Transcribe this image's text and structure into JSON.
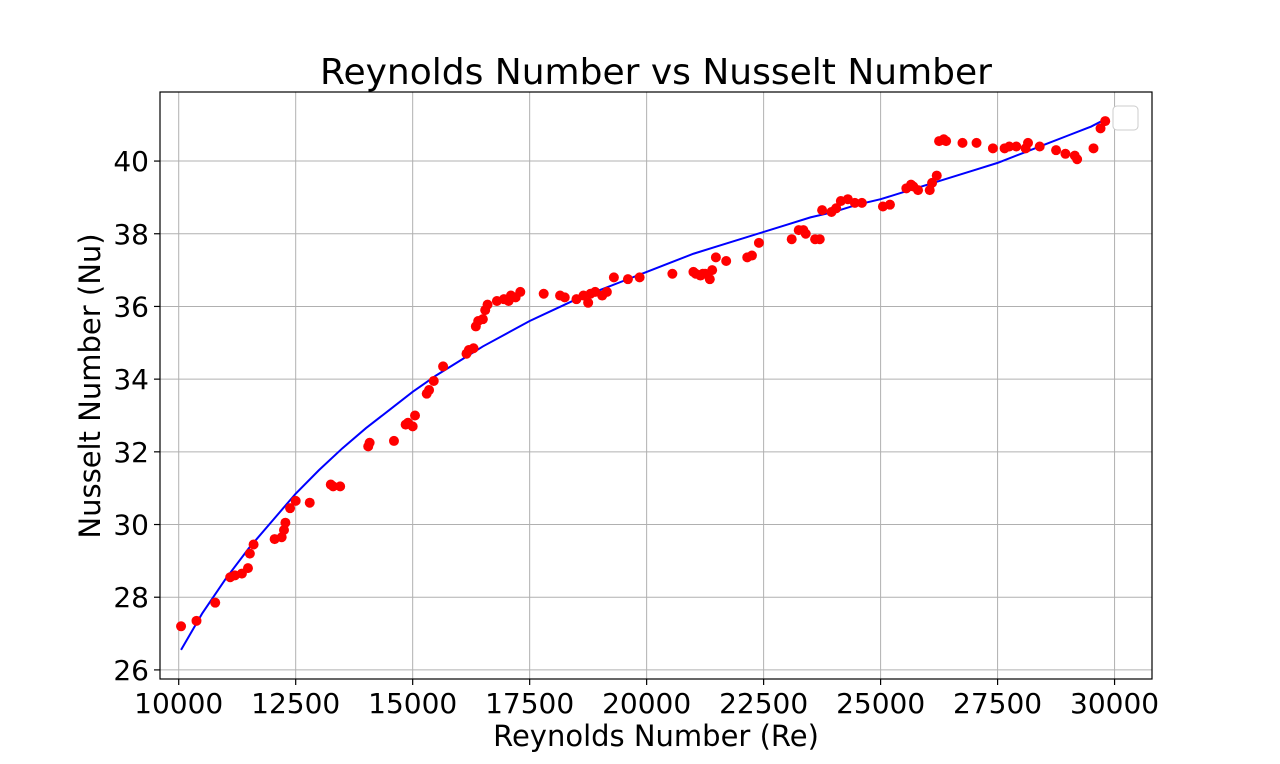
{
  "chart_data": {
    "type": "scatter",
    "title": "Reynolds Number vs Nusselt Number",
    "xlabel": "Reynolds Number (Re)",
    "ylabel": "Nusselt Number (Nu)",
    "xlim": [
      9600,
      30800
    ],
    "ylim": [
      25.75,
      41.9
    ],
    "xticks": [
      10000,
      12500,
      15000,
      17500,
      20000,
      22500,
      25000,
      27500,
      30000
    ],
    "yticks": [
      26,
      28,
      30,
      32,
      34,
      36,
      38,
      40
    ],
    "grid": true,
    "legend": "top-right",
    "colors": {
      "points": "#ff0000",
      "fit": "#0000ff"
    },
    "series": [
      {
        "kind": "scatter",
        "color": "#ff0000",
        "x": [
          10050,
          10380,
          10780,
          11100,
          11200,
          11350,
          11480,
          11520,
          11600,
          12050,
          12200,
          12250,
          12280,
          12380,
          12500,
          12800,
          13250,
          13300,
          13450,
          14050,
          14080,
          14600,
          14850,
          14900,
          15000,
          15050,
          15300,
          15350,
          15450,
          15650,
          16150,
          16200,
          16300,
          16350,
          16400,
          16500,
          16550,
          16600,
          16800,
          16950,
          17050,
          17100,
          17200,
          17300,
          17800,
          18150,
          18250,
          18500,
          18650,
          18750,
          18800,
          18900,
          19050,
          19150,
          19300,
          19600,
          19850,
          20550,
          21000,
          21050,
          21150,
          21200,
          21250,
          21350,
          21400,
          21480,
          21700,
          22150,
          22250,
          22400,
          23100,
          23250,
          23350,
          23400,
          23600,
          23700,
          23750,
          23950,
          24050,
          24150,
          24300,
          24450,
          24600,
          25050,
          25200,
          25550,
          25650,
          25700,
          25800,
          26050,
          26100,
          26200,
          26250,
          26350,
          26400,
          26750,
          27050,
          27400,
          27650,
          27750,
          27900,
          28100,
          28150,
          28400,
          28750,
          28950,
          29150,
          29200,
          29550,
          29700,
          29800
        ],
        "y": [
          27.2,
          27.35,
          27.85,
          28.55,
          28.6,
          28.65,
          28.8,
          29.2,
          29.45,
          29.6,
          29.65,
          29.85,
          30.05,
          30.45,
          30.65,
          30.6,
          31.1,
          31.05,
          31.05,
          32.15,
          32.25,
          32.3,
          32.75,
          32.8,
          32.7,
          33.0,
          33.6,
          33.7,
          33.95,
          34.35,
          34.7,
          34.8,
          34.85,
          35.45,
          35.6,
          35.65,
          35.9,
          36.05,
          36.15,
          36.2,
          36.15,
          36.3,
          36.25,
          36.4,
          36.35,
          36.3,
          36.25,
          36.2,
          36.3,
          36.1,
          36.35,
          36.4,
          36.3,
          36.4,
          36.8,
          36.75,
          36.8,
          36.9,
          36.95,
          36.9,
          36.85,
          36.9,
          36.9,
          36.75,
          37.0,
          37.35,
          37.25,
          37.35,
          37.4,
          37.75,
          37.85,
          38.1,
          38.1,
          38.0,
          37.85,
          37.85,
          38.65,
          38.6,
          38.7,
          38.9,
          38.95,
          38.85,
          38.85,
          38.75,
          38.8,
          39.25,
          39.35,
          39.3,
          39.2,
          39.2,
          39.4,
          39.6,
          40.55,
          40.6,
          40.55,
          40.5,
          40.5,
          40.35,
          40.35,
          40.4,
          40.4,
          40.35,
          40.5,
          40.4,
          40.3,
          40.2,
          40.15,
          40.05,
          40.35,
          40.9,
          41.1
        ]
      },
      {
        "kind": "line",
        "color": "#0000ff",
        "x": [
          10050,
          10500,
          11000,
          11500,
          12000,
          12500,
          13000,
          13500,
          14000,
          14500,
          15000,
          15500,
          16000,
          16500,
          17000,
          17500,
          18000,
          18500,
          19000,
          19500,
          20000,
          20500,
          21000,
          21500,
          22000,
          22500,
          23000,
          23500,
          24000,
          24500,
          25000,
          25500,
          26000,
          26500,
          27000,
          27500,
          28000,
          28500,
          29000,
          29500,
          29800
        ],
        "y": [
          26.55,
          27.55,
          28.5,
          29.35,
          30.1,
          30.85,
          31.5,
          32.1,
          32.65,
          33.15,
          33.65,
          34.1,
          34.5,
          34.9,
          35.25,
          35.6,
          35.9,
          36.2,
          36.45,
          36.7,
          36.95,
          37.2,
          37.45,
          37.65,
          37.85,
          38.05,
          38.25,
          38.45,
          38.6,
          38.8,
          38.95,
          39.15,
          39.35,
          39.55,
          39.75,
          39.95,
          40.2,
          40.45,
          40.7,
          40.95,
          41.15
        ]
      }
    ]
  }
}
